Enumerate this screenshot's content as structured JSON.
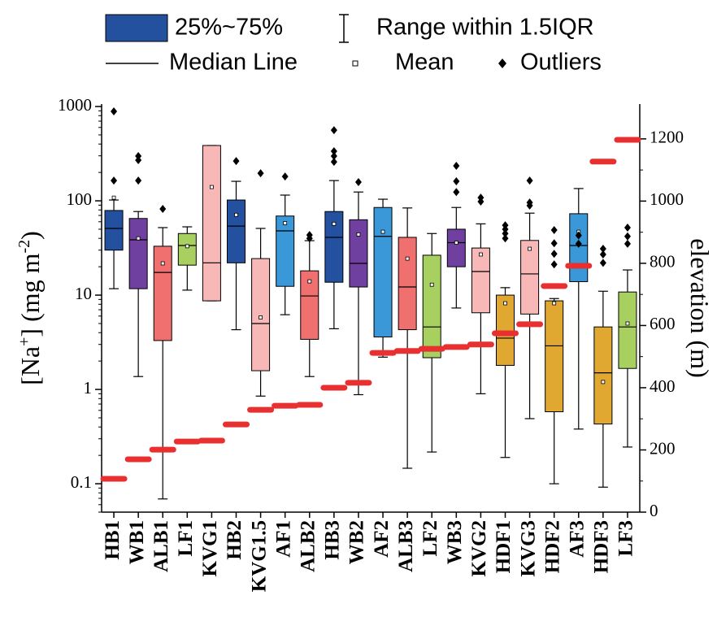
{
  "chart_data": {
    "type": "box",
    "legend": {
      "box": "25%~75%",
      "range": "Range within 1.5IQR",
      "median": "Median Line",
      "mean": "Mean",
      "outliers": "Outliers",
      "box_color": "#2450a0"
    },
    "y_label_parts": [
      "[Na",
      "+",
      "] (mg m",
      "-2",
      ")"
    ],
    "y2_label": "elevation (m)",
    "log_y": true,
    "ylim": [
      0.05,
      1062
    ],
    "yticks": [
      0.1,
      1,
      10,
      100,
      1000
    ],
    "y2lim": [
      0,
      1312
    ],
    "y2ticks": [
      0,
      200,
      400,
      600,
      800,
      1000,
      1200
    ],
    "categories": [
      "HB1",
      "WB1",
      "ALB1",
      "LF1",
      "KVG1",
      "HB2",
      "KVG1.5",
      "AF1",
      "ALB2",
      "HB3",
      "WB2",
      "AF2",
      "ALB3",
      "LF2",
      "WB3",
      "KVG2",
      "HDF1",
      "KVG3",
      "HDF2",
      "AF3",
      "HDF3",
      "LF3"
    ],
    "boxes": [
      {
        "color": "#2450a0",
        "whisker_low": 11.7,
        "q1": 30,
        "median": 51,
        "q3": 79,
        "whisker_high": 102,
        "mean": 108,
        "outliers": [
          888,
          164
        ]
      },
      {
        "color": "#7040a0",
        "whisker_low": 1.37,
        "q1": 11.7,
        "median": 38.6,
        "q3": 65,
        "whisker_high": 77,
        "mean": 40,
        "outliers": [
          298,
          270,
          164
        ]
      },
      {
        "color": "#f07070",
        "whisker_low": 0.069,
        "q1": 3.3,
        "median": 17.4,
        "q3": 33,
        "whisker_high": 52,
        "mean": 21.7,
        "outliers": [
          82
        ]
      },
      {
        "color": "#a8d060",
        "whisker_low": 11.3,
        "q1": 20.8,
        "median": 33.6,
        "q3": 45,
        "whisker_high": 53,
        "mean": 33,
        "outliers": []
      },
      {
        "color": "#f8b8b8",
        "whisker_low": 8.7,
        "q1": 8.7,
        "median": 22,
        "q3": 386,
        "whisker_high": 386,
        "mean": 140,
        "outliers": []
      },
      {
        "color": "#2450a0",
        "whisker_low": 4.3,
        "q1": 22,
        "median": 54,
        "q3": 102,
        "whisker_high": 161,
        "mean": 71,
        "outliers": [
          264
        ]
      },
      {
        "color": "#f8b8b8",
        "whisker_low": 0.85,
        "q1": 1.58,
        "median": 5.0,
        "q3": 24.4,
        "whisker_high": 51,
        "mean": 5.8,
        "outliers": [
          196
        ]
      },
      {
        "color": "#3a98d8",
        "whisker_low": 6.2,
        "q1": 12.4,
        "median": 48,
        "q3": 69,
        "whisker_high": 115,
        "mean": 58,
        "outliers": [
          181
        ]
      },
      {
        "color": "#f07070",
        "whisker_low": 1.37,
        "q1": 3.4,
        "median": 9.8,
        "q3": 18.1,
        "whisker_high": 37.8,
        "mean": 14,
        "outliers": [
          43.4,
          40
        ]
      },
      {
        "color": "#2450a0",
        "whisker_low": 4.4,
        "q1": 13.7,
        "median": 41,
        "q3": 77,
        "whisker_high": 164,
        "mean": 57,
        "outliers": [
          562,
          336,
          298,
          259
        ]
      },
      {
        "color": "#7040a0",
        "whisker_low": 0.88,
        "q1": 12.2,
        "median": 21.7,
        "q3": 63,
        "whisker_high": 124,
        "mean": 44,
        "outliers": [
          158
        ]
      },
      {
        "color": "#3a98d8",
        "whisker_low": 2.2,
        "q1": 3.6,
        "median": 42,
        "q3": 85,
        "whisker_high": 104,
        "mean": 47,
        "outliers": []
      },
      {
        "color": "#f07070",
        "whisker_low": 0.146,
        "q1": 4.3,
        "median": 12.2,
        "q3": 41,
        "whisker_high": 84,
        "mean": 24.4,
        "outliers": []
      },
      {
        "color": "#a8d060",
        "whisker_low": 0.217,
        "q1": 2.17,
        "median": 4.6,
        "q3": 26.5,
        "whisker_high": 45,
        "mean": 12.9,
        "outliers": []
      },
      {
        "color": "#7040a0",
        "whisker_low": 7.3,
        "q1": 20,
        "median": 36,
        "q3": 50,
        "whisker_high": 85,
        "mean": 36,
        "outliers": [
          235,
          161,
          124
        ]
      },
      {
        "color": "#f8b8b8",
        "whisker_low": 0.9,
        "q1": 6.5,
        "median": 17.8,
        "q3": 31.6,
        "whisker_high": 57,
        "mean": 27,
        "outliers": [
          108,
          98
        ]
      },
      {
        "color": "#e0a830",
        "whisker_low": 0.19,
        "q1": 1.8,
        "median": 3.5,
        "q3": 10,
        "whisker_high": 12,
        "mean": 8.2,
        "outliers": [
          55,
          50,
          45,
          40
        ]
      },
      {
        "color": "#f8b8b8",
        "whisker_low": 0.49,
        "q1": 6.3,
        "median": 16.8,
        "q3": 38,
        "whisker_high": 74,
        "mean": 31,
        "outliers": [
          164,
          96,
          89
        ]
      },
      {
        "color": "#e0a830",
        "whisker_low": 0.1,
        "q1": 0.58,
        "median": 2.9,
        "q3": 8.7,
        "whisker_high": 9.2,
        "mean": 8.2,
        "outliers": [
          49,
          35.5,
          27.4,
          21.2
        ]
      },
      {
        "color": "#3a98d8",
        "whisker_low": 0.38,
        "q1": 13.9,
        "median": 33.6,
        "q3": 73,
        "whisker_high": 135,
        "mean": 47,
        "outliers": [
          43,
          35
        ]
      },
      {
        "color": "#e0a830",
        "whisker_low": 0.092,
        "q1": 0.43,
        "median": 1.5,
        "q3": 4.6,
        "whisker_high": 11,
        "mean": 1.2,
        "outliers": [
          31,
          27,
          22
        ]
      },
      {
        "color": "#a8d060",
        "whisker_low": 0.245,
        "q1": 1.67,
        "median": 4.6,
        "q3": 10.8,
        "whisker_high": 18.5,
        "mean": 5,
        "outliers": [
          52,
          42,
          35
        ]
      }
    ],
    "elevation": {
      "axis": "y2",
      "color": "#e83030",
      "values": [
        107,
        170,
        201,
        227,
        230,
        282,
        329,
        342,
        345,
        400,
        416,
        512,
        518,
        525,
        531,
        539,
        575,
        604,
        727,
        792,
        1127,
        1197
      ]
    }
  }
}
